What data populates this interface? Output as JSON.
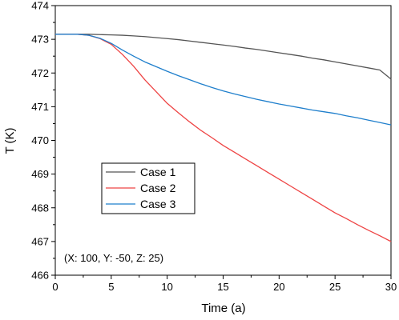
{
  "chart_data": {
    "type": "line",
    "title": "",
    "xlabel": "Time (a)",
    "ylabel": "T (K)",
    "xlim": [
      0,
      30
    ],
    "ylim": [
      466,
      474
    ],
    "xticks": [
      0,
      5,
      10,
      15,
      20,
      25,
      30
    ],
    "yticks": [
      466,
      467,
      468,
      469,
      470,
      471,
      472,
      473,
      474
    ],
    "grid": false,
    "legend_position": "middle-left",
    "annotation": "(X: 100, Y: -50, Z: 25)",
    "x": [
      0,
      1,
      2,
      3,
      4,
      5,
      6,
      7,
      8,
      9,
      10,
      11,
      12,
      13,
      14,
      15,
      16,
      17,
      18,
      19,
      20,
      21,
      22,
      23,
      24,
      25,
      26,
      27,
      28,
      29,
      30
    ],
    "series": [
      {
        "name": "Case 1",
        "color": "#555555",
        "values": [
          473.15,
          473.15,
          473.15,
          473.15,
          473.14,
          473.13,
          473.12,
          473.1,
          473.08,
          473.05,
          473.02,
          472.99,
          472.95,
          472.91,
          472.87,
          472.83,
          472.79,
          472.74,
          472.7,
          472.65,
          472.6,
          472.55,
          472.5,
          472.44,
          472.39,
          472.33,
          472.27,
          472.21,
          472.15,
          472.09,
          471.82
        ]
      },
      {
        "name": "Case 2",
        "color": "#ee4444",
        "values": [
          473.15,
          473.15,
          473.15,
          473.12,
          473.02,
          472.85,
          472.55,
          472.2,
          471.8,
          471.45,
          471.1,
          470.82,
          470.55,
          470.3,
          470.08,
          469.85,
          469.65,
          469.45,
          469.25,
          469.05,
          468.85,
          468.65,
          468.45,
          468.25,
          468.05,
          467.85,
          467.68,
          467.5,
          467.33,
          467.17,
          467.0
        ]
      },
      {
        "name": "Case 3",
        "color": "#1f7fcc",
        "values": [
          473.15,
          473.15,
          473.15,
          473.12,
          473.03,
          472.88,
          472.68,
          472.5,
          472.33,
          472.19,
          472.05,
          471.92,
          471.8,
          471.68,
          471.57,
          471.47,
          471.38,
          471.3,
          471.22,
          471.15,
          471.08,
          471.02,
          470.96,
          470.9,
          470.85,
          470.8,
          470.73,
          470.67,
          470.6,
          470.53,
          470.46
        ]
      }
    ]
  }
}
